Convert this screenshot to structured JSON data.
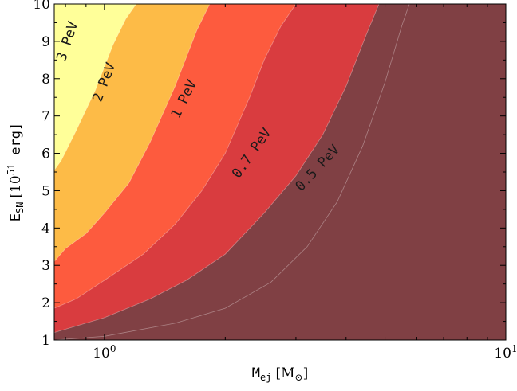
{
  "chart_data": {
    "type": "area",
    "title": "",
    "xlabel": {
      "base": "M",
      "sub": "ej",
      "unit": "[M",
      "unit_sub": "⊙",
      "unit_close": "]"
    },
    "ylabel": {
      "base": "E",
      "sub": "SN",
      "unit_pre": "[10",
      "unit_sup": "51",
      "unit_post": " erg]"
    },
    "xscale": "log",
    "xlim": [
      0.75,
      10
    ],
    "ylim": [
      1,
      10
    ],
    "x_ticks": [
      {
        "value": 1,
        "base": "10",
        "exp": "0"
      },
      {
        "value": 10,
        "base": "10",
        "exp": "1"
      }
    ],
    "y_ticks": [
      1,
      2,
      3,
      4,
      5,
      6,
      7,
      8,
      9,
      10
    ],
    "y_tick_labels": [
      "1",
      "2",
      "3",
      "4",
      "5",
      "6",
      "7",
      "8",
      "9",
      "10"
    ],
    "grid": false,
    "legend": "none",
    "regions": [
      {
        "label": "3 PeV",
        "color": "#ffff99"
      },
      {
        "label": "2 PeV",
        "color": "#fdbb47"
      },
      {
        "label": "1 PeV",
        "color": "#fd5b3e"
      },
      {
        "label": "0.7 PeV",
        "color": "#d93c3f"
      },
      {
        "label": "0.5 PeV",
        "color": "#804044"
      }
    ],
    "contours": [
      {
        "label": "3 PeV",
        "x": [
          0.75,
          0.78,
          0.85,
          0.95,
          1.05,
          1.13,
          1.2
        ],
        "y": [
          5.55,
          5.8,
          6.6,
          7.7,
          8.9,
          9.6,
          10
        ]
      },
      {
        "label": "2 PeV",
        "x": [
          0.75,
          0.8,
          0.9,
          1.0,
          1.15,
          1.3,
          1.5,
          1.7,
          1.83
        ],
        "y": [
          3.1,
          3.45,
          3.85,
          4.4,
          5.2,
          6.3,
          7.8,
          9.3,
          10
        ]
      },
      {
        "label": "1 PeV",
        "x": [
          0.75,
          0.85,
          1.0,
          1.25,
          1.5,
          1.75,
          2.0,
          2.3,
          2.5,
          2.75,
          3.0
        ],
        "y": [
          1.85,
          2.1,
          2.6,
          3.3,
          4.1,
          5.0,
          6.0,
          7.5,
          8.5,
          9.4,
          10
        ]
      },
      {
        "label": "0.7 PeV",
        "x": [
          0.75,
          1.0,
          1.3,
          1.6,
          2.0,
          2.5,
          3.0,
          3.5,
          4.0,
          4.5,
          4.83
        ],
        "y": [
          1.2,
          1.6,
          2.1,
          2.6,
          3.3,
          4.4,
          5.4,
          6.5,
          7.8,
          9.2,
          10
        ]
      },
      {
        "label": "0.5 PeV",
        "x": [
          0.75,
          1.0,
          1.5,
          2.0,
          2.6,
          3.2,
          3.8,
          4.4,
          5.0,
          5.5,
          5.75
        ],
        "y": [
          1.0,
          1.1,
          1.45,
          1.85,
          2.55,
          3.5,
          4.7,
          6.2,
          7.9,
          9.4,
          10
        ]
      }
    ],
    "label_positions": [
      {
        "label": "3 PeV",
        "x": 0.81,
        "y": 9.0,
        "angle": -72
      },
      {
        "label": "2 PeV",
        "x": 1.0,
        "y": 7.9,
        "angle": -69
      },
      {
        "label": "1 PeV",
        "x": 1.58,
        "y": 7.45,
        "angle": -64
      },
      {
        "label": "0.7 PeV",
        "x": 2.33,
        "y": 6.0,
        "angle": -55
      },
      {
        "label": "0.5 PeV",
        "x": 3.4,
        "y": 5.6,
        "angle": -47
      }
    ]
  }
}
